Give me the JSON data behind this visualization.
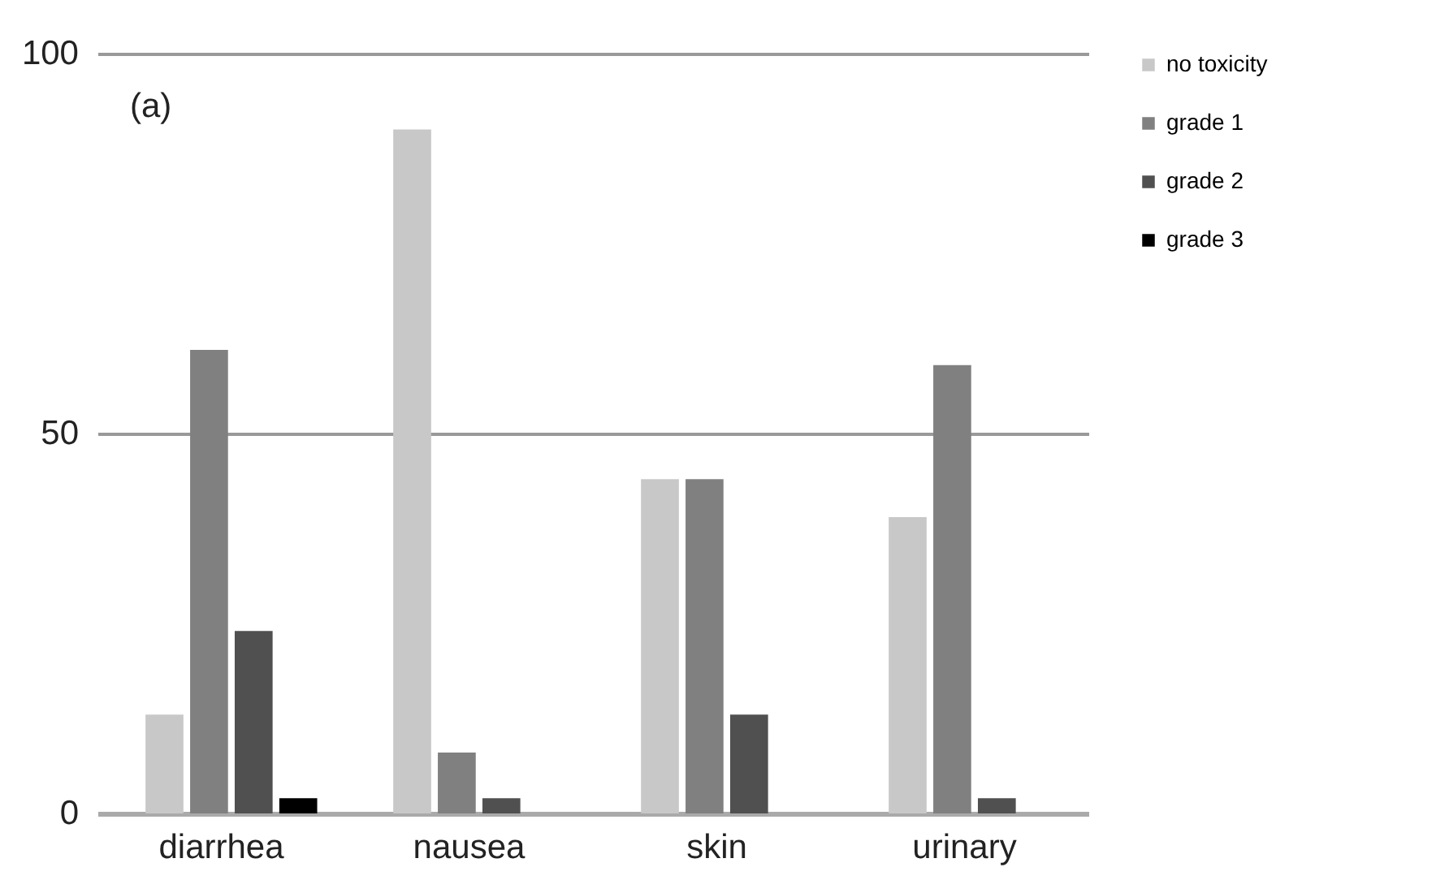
{
  "chart_data": {
    "type": "bar",
    "categories": [
      "diarrhea",
      "nausea",
      "skin",
      "urinary"
    ],
    "series": [
      {
        "name": "no toxicity",
        "color": "#c8c8c8",
        "values": [
          13,
          90,
          44,
          39
        ]
      },
      {
        "name": "grade 1",
        "color": "#808080",
        "values": [
          61,
          8,
          44,
          59
        ]
      },
      {
        "name": "grade 2",
        "color": "#505050",
        "values": [
          24,
          2,
          13,
          2
        ]
      },
      {
        "name": "grade 3",
        "color": "#000000",
        "values": [
          2,
          0,
          0,
          0
        ]
      }
    ],
    "ylim": [
      0,
      100
    ],
    "yticks": [
      0,
      50,
      100
    ],
    "grid": "y",
    "legend": "right",
    "annotations": [
      "(a)"
    ]
  }
}
